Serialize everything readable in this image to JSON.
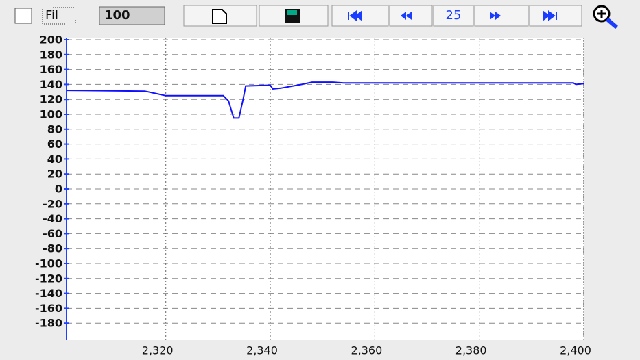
{
  "toolbar": {
    "checkbox_label": "Fil",
    "count_field": "100",
    "page_field": "25"
  },
  "chart_data": {
    "type": "line",
    "color": "#1010ff",
    "x": [
      2301,
      2316,
      2318,
      2320,
      2331,
      2332,
      2333,
      2334,
      2334.8,
      2335.3,
      2340,
      2340.5,
      2342,
      2346,
      2348,
      2352,
      2354,
      2398,
      2398.5,
      2400
    ],
    "values": [
      132,
      131,
      128,
      125,
      125,
      118,
      95,
      95,
      120,
      138,
      139,
      134,
      135,
      140,
      143,
      143,
      142,
      142,
      140,
      141
    ],
    "xlim": [
      2301,
      2400
    ],
    "xticks": [
      {
        "value": 2320,
        "label": "2,320"
      },
      {
        "value": 2340,
        "label": "2,340"
      },
      {
        "value": 2360,
        "label": "2,360"
      },
      {
        "value": 2380,
        "label": "2,380"
      },
      {
        "value": 2400,
        "label": "2,400"
      }
    ],
    "ylim": [
      -200,
      200
    ],
    "yticks": [
      200,
      180,
      160,
      140,
      120,
      100,
      80,
      60,
      40,
      20,
      0,
      -20,
      -40,
      -60,
      -80,
      -100,
      -120,
      -140,
      -160,
      -180
    ],
    "grid": true
  }
}
